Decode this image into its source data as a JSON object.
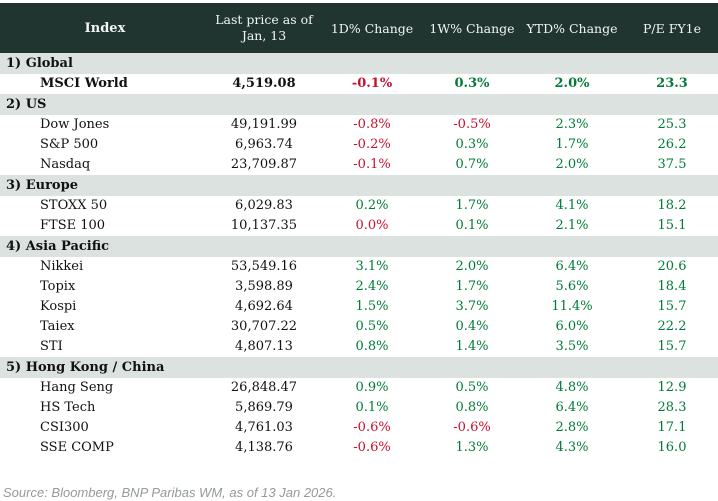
{
  "header": {
    "index_label": "Index",
    "price_line1": "Last price as of",
    "price_line2": "Jan, 13",
    "d1_label": "1D% Change",
    "w1_label": "1W% Change",
    "ytd_label": "YTD% Change",
    "pe_label": "P/E FY1e"
  },
  "colors": {
    "header_bg": "#20352F",
    "section_bg": "#DCE2DF",
    "negative": "#C8102E",
    "positive": "#007B36",
    "pe_text": "#007B36"
  },
  "sections": [
    {
      "label": "1) Global",
      "rows": [
        {
          "name": "MSCI World",
          "bold": true,
          "price": "4,519.08",
          "d1": {
            "v": "-0.1%",
            "c": "neg"
          },
          "w1": {
            "v": "0.3%",
            "c": "pos"
          },
          "ytd": {
            "v": "2.0%",
            "c": "pos"
          },
          "pe": "23.3"
        }
      ]
    },
    {
      "label": "2) US",
      "rows": [
        {
          "name": "Dow Jones",
          "bold": false,
          "price": "49,191.99",
          "d1": {
            "v": "-0.8%",
            "c": "neg"
          },
          "w1": {
            "v": "-0.5%",
            "c": "neg"
          },
          "ytd": {
            "v": "2.3%",
            "c": "pos"
          },
          "pe": "25.3"
        },
        {
          "name": "S&P 500",
          "bold": false,
          "price": "6,963.74",
          "d1": {
            "v": "-0.2%",
            "c": "neg"
          },
          "w1": {
            "v": "0.3%",
            "c": "pos"
          },
          "ytd": {
            "v": "1.7%",
            "c": "pos"
          },
          "pe": "26.2"
        },
        {
          "name": "Nasdaq",
          "bold": false,
          "price": "23,709.87",
          "d1": {
            "v": "-0.1%",
            "c": "neg"
          },
          "w1": {
            "v": "0.7%",
            "c": "pos"
          },
          "ytd": {
            "v": "2.0%",
            "c": "pos"
          },
          "pe": "37.5"
        }
      ]
    },
    {
      "label": "3) Europe",
      "rows": [
        {
          "name": "STOXX 50",
          "bold": false,
          "price": "6,029.83",
          "d1": {
            "v": "0.2%",
            "c": "pos"
          },
          "w1": {
            "v": "1.7%",
            "c": "pos"
          },
          "ytd": {
            "v": "4.1%",
            "c": "pos"
          },
          "pe": "18.2"
        },
        {
          "name": "FTSE 100",
          "bold": false,
          "price": "10,137.35",
          "d1": {
            "v": "0.0%",
            "c": "neg"
          },
          "w1": {
            "v": "0.1%",
            "c": "pos"
          },
          "ytd": {
            "v": "2.1%",
            "c": "pos"
          },
          "pe": "15.1"
        }
      ]
    },
    {
      "label": "4) Asia Pacific",
      "rows": [
        {
          "name": "Nikkei",
          "bold": false,
          "price": "53,549.16",
          "d1": {
            "v": "3.1%",
            "c": "pos"
          },
          "w1": {
            "v": "2.0%",
            "c": "pos"
          },
          "ytd": {
            "v": "6.4%",
            "c": "pos"
          },
          "pe": "20.6"
        },
        {
          "name": "Topix",
          "bold": false,
          "price": "3,598.89",
          "d1": {
            "v": "2.4%",
            "c": "pos"
          },
          "w1": {
            "v": "1.7%",
            "c": "pos"
          },
          "ytd": {
            "v": "5.6%",
            "c": "pos"
          },
          "pe": "18.4"
        },
        {
          "name": "Kospi",
          "bold": false,
          "price": "4,692.64",
          "d1": {
            "v": "1.5%",
            "c": "pos"
          },
          "w1": {
            "v": "3.7%",
            "c": "pos"
          },
          "ytd": {
            "v": "11.4%",
            "c": "pos"
          },
          "pe": "15.7"
        },
        {
          "name": "Taiex",
          "bold": false,
          "price": "30,707.22",
          "d1": {
            "v": "0.5%",
            "c": "pos"
          },
          "w1": {
            "v": "0.4%",
            "c": "pos"
          },
          "ytd": {
            "v": "6.0%",
            "c": "pos"
          },
          "pe": "22.2"
        },
        {
          "name": "STI",
          "bold": false,
          "price": "4,807.13",
          "d1": {
            "v": "0.8%",
            "c": "pos"
          },
          "w1": {
            "v": "1.4%",
            "c": "pos"
          },
          "ytd": {
            "v": "3.5%",
            "c": "pos"
          },
          "pe": "15.7"
        }
      ]
    },
    {
      "label": "5) Hong Kong / China",
      "rows": [
        {
          "name": "Hang Seng",
          "bold": false,
          "price": "26,848.47",
          "d1": {
            "v": "0.9%",
            "c": "pos"
          },
          "w1": {
            "v": "0.5%",
            "c": "pos"
          },
          "ytd": {
            "v": "4.8%",
            "c": "pos"
          },
          "pe": "12.9"
        },
        {
          "name": "HS Tech",
          "bold": false,
          "price": "5,869.79",
          "d1": {
            "v": "0.1%",
            "c": "pos"
          },
          "w1": {
            "v": "0.8%",
            "c": "pos"
          },
          "ytd": {
            "v": "6.4%",
            "c": "pos"
          },
          "pe": "28.3"
        },
        {
          "name": "CSI300",
          "bold": false,
          "price": "4,761.03",
          "d1": {
            "v": "-0.6%",
            "c": "neg"
          },
          "w1": {
            "v": "-0.6%",
            "c": "neg"
          },
          "ytd": {
            "v": "2.8%",
            "c": "pos"
          },
          "pe": "17.1"
        },
        {
          "name": "SSE COMP",
          "bold": false,
          "price": "4,138.76",
          "d1": {
            "v": "-0.6%",
            "c": "neg"
          },
          "w1": {
            "v": "1.3%",
            "c": "pos"
          },
          "ytd": {
            "v": "4.3%",
            "c": "pos"
          },
          "pe": "16.0"
        }
      ]
    }
  ],
  "footer": {
    "source": "Source: Bloomberg, BNP Paribas WM, as of 13 Jan 2026."
  },
  "chart_data": {
    "type": "table",
    "title": "",
    "columns": [
      "Index",
      "Last price as of Jan, 13",
      "1D% Change",
      "1W% Change",
      "YTD% Change",
      "P/E FY1e"
    ],
    "groups": [
      {
        "group": "1) Global",
        "rows": [
          [
            "MSCI World",
            4519.08,
            -0.1,
            0.3,
            2.0,
            23.3
          ]
        ]
      },
      {
        "group": "2) US",
        "rows": [
          [
            "Dow Jones",
            49191.99,
            -0.8,
            -0.5,
            2.3,
            25.3
          ],
          [
            "S&P 500",
            6963.74,
            -0.2,
            0.3,
            1.7,
            26.2
          ],
          [
            "Nasdaq",
            23709.87,
            -0.1,
            0.7,
            2.0,
            37.5
          ]
        ]
      },
      {
        "group": "3) Europe",
        "rows": [
          [
            "STOXX 50",
            6029.83,
            0.2,
            1.7,
            4.1,
            18.2
          ],
          [
            "FTSE 100",
            10137.35,
            0.0,
            0.1,
            2.1,
            15.1
          ]
        ]
      },
      {
        "group": "4) Asia Pacific",
        "rows": [
          [
            "Nikkei",
            53549.16,
            3.1,
            2.0,
            6.4,
            20.6
          ],
          [
            "Topix",
            3598.89,
            2.4,
            1.7,
            5.6,
            18.4
          ],
          [
            "Kospi",
            4692.64,
            1.5,
            3.7,
            11.4,
            15.7
          ],
          [
            "Taiex",
            30707.22,
            0.5,
            0.4,
            6.0,
            22.2
          ],
          [
            "STI",
            4807.13,
            0.8,
            1.4,
            3.5,
            15.7
          ]
        ]
      },
      {
        "group": "5) Hong Kong / China",
        "rows": [
          [
            "Hang Seng",
            26848.47,
            0.9,
            0.5,
            4.8,
            12.9
          ],
          [
            "HS Tech",
            5869.79,
            0.1,
            0.8,
            6.4,
            28.3
          ],
          [
            "CSI300",
            4761.03,
            -0.6,
            -0.6,
            2.8,
            17.1
          ],
          [
            "SSE COMP",
            4138.76,
            -0.6,
            1.3,
            4.3,
            16.0
          ]
        ]
      }
    ],
    "notes": "Percent-change cells are colored red when shown as declines (incl. FTSE 100 0.0% 1D) and green when gains; P/E column shown in green."
  }
}
